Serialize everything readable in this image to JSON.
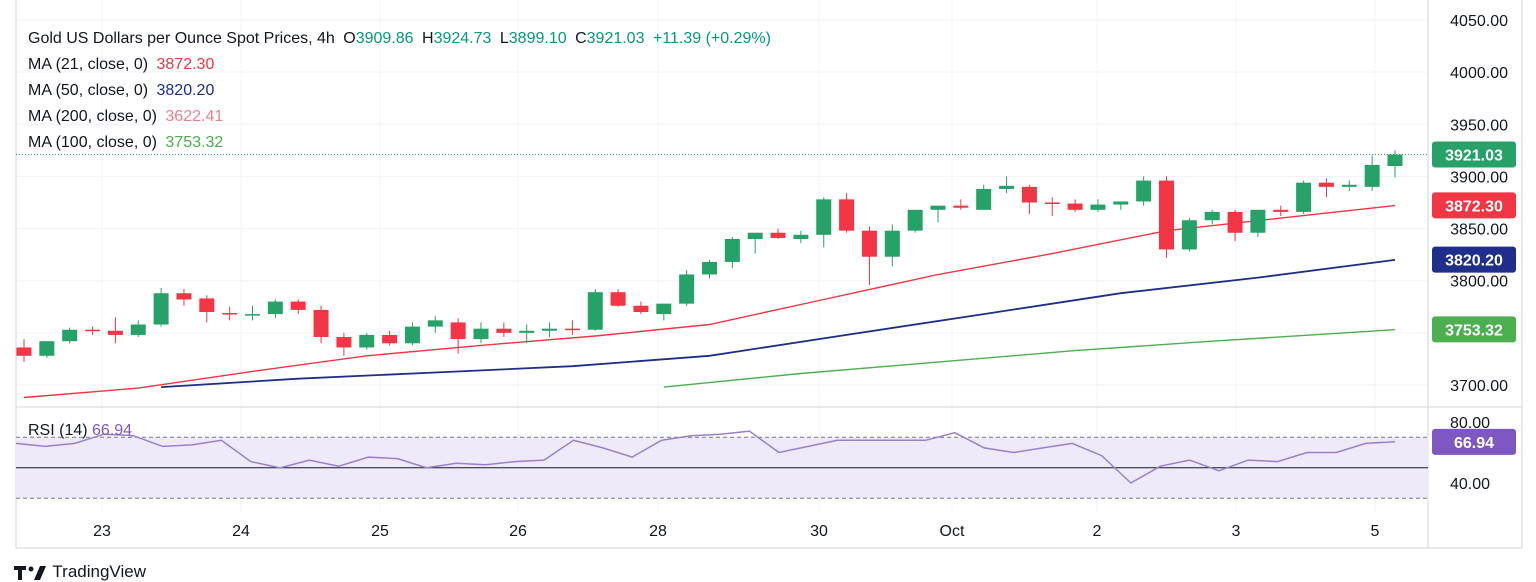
{
  "header": {
    "symbol": "Gold US Dollars per Ounce Spot Prices, 4h",
    "o_label": "O",
    "o_value": "3909.86",
    "h_label": "H",
    "h_value": "3924.73",
    "l_label": "L",
    "l_value": "3899.10",
    "c_label": "C",
    "c_value": "3921.03",
    "change": "+11.39 (+0.29%)",
    "ohlc_color": "#089981"
  },
  "ma_legends": [
    {
      "label": "MA (21, close, 0)",
      "value": "3872.30",
      "color": "#f23645"
    },
    {
      "label": "MA (50, close, 0)",
      "value": "3820.20",
      "color": "#1e2e8a"
    },
    {
      "label": "MA (200, close, 0)",
      "value": "3622.41",
      "color": "#ef7f91"
    },
    {
      "label": "MA (100, close, 0)",
      "value": "3753.32",
      "color": "#4caf50"
    }
  ],
  "rsi_legend": {
    "label": "RSI (14)",
    "value": "66.94",
    "color": "#7e57c2"
  },
  "branding": {
    "text": "TradingView"
  },
  "chart_data": {
    "type": "candlestick",
    "price_axis": {
      "min": 3700,
      "max": 4050,
      "ticks": [
        "4050.00",
        "4000.00",
        "3950.00",
        "3900.00",
        "3850.00",
        "3800.00",
        "3700.00"
      ]
    },
    "rsi_axis": {
      "ticks": [
        "80.00",
        "40.00"
      ],
      "upper_band": 70,
      "lower_band": 30
    },
    "x_labels": [
      "23",
      "24",
      "25",
      "26",
      "28",
      "30",
      "Oct",
      "2",
      "3",
      "5"
    ],
    "colors": {
      "up": "#26a269",
      "down": "#f23645",
      "ma21": "#f23645",
      "ma50": "#1e2e8a",
      "ma100": "#4caf50",
      "rsi": "#9a7fd1",
      "rsi_fill": "#efeafa"
    },
    "candles": [
      [
        3736,
        3744,
        3722,
        3728
      ],
      [
        3728,
        3742,
        3726,
        3742
      ],
      [
        3742,
        3755,
        3740,
        3753
      ],
      [
        3753,
        3756,
        3748,
        3752
      ],
      [
        3752,
        3765,
        3740,
        3748
      ],
      [
        3748,
        3762,
        3746,
        3758
      ],
      [
        3758,
        3793,
        3756,
        3788
      ],
      [
        3788,
        3792,
        3776,
        3782
      ],
      [
        3783,
        3786,
        3760,
        3770
      ],
      [
        3769,
        3775,
        3762,
        3768
      ],
      [
        3768,
        3776,
        3762,
        3768
      ],
      [
        3768,
        3782,
        3764,
        3780
      ],
      [
        3780,
        3782,
        3768,
        3772
      ],
      [
        3772,
        3776,
        3740,
        3746
      ],
      [
        3746,
        3750,
        3728,
        3736
      ],
      [
        3736,
        3750,
        3734,
        3748
      ],
      [
        3748,
        3752,
        3738,
        3740
      ],
      [
        3740,
        3760,
        3738,
        3756
      ],
      [
        3756,
        3766,
        3750,
        3762
      ],
      [
        3760,
        3764,
        3730,
        3744
      ],
      [
        3744,
        3760,
        3740,
        3754
      ],
      [
        3754,
        3760,
        3746,
        3750
      ],
      [
        3750,
        3758,
        3740,
        3752
      ],
      [
        3752,
        3760,
        3746,
        3754
      ],
      [
        3754,
        3762,
        3748,
        3753
      ],
      [
        3753,
        3792,
        3752,
        3789
      ],
      [
        3789,
        3792,
        3775,
        3776
      ],
      [
        3776,
        3780,
        3768,
        3770
      ],
      [
        3768,
        3778,
        3762,
        3778
      ],
      [
        3778,
        3810,
        3776,
        3806
      ],
      [
        3806,
        3820,
        3802,
        3818
      ],
      [
        3818,
        3842,
        3812,
        3840
      ],
      [
        3840,
        3846,
        3826,
        3846
      ],
      [
        3846,
        3850,
        3840,
        3841
      ],
      [
        3840,
        3848,
        3836,
        3844
      ],
      [
        3844,
        3880,
        3832,
        3878
      ],
      [
        3878,
        3884,
        3846,
        3848
      ],
      [
        3848,
        3852,
        3796,
        3823
      ],
      [
        3823,
        3854,
        3814,
        3848
      ],
      [
        3848,
        3868,
        3846,
        3868
      ],
      [
        3868,
        3872,
        3856,
        3872
      ],
      [
        3872,
        3878,
        3868,
        3870
      ],
      [
        3868,
        3892,
        3870,
        3888
      ],
      [
        3888,
        3900,
        3884,
        3891
      ],
      [
        3890,
        3892,
        3864,
        3875
      ],
      [
        3875,
        3880,
        3862,
        3874
      ],
      [
        3874,
        3878,
        3866,
        3868
      ],
      [
        3868,
        3878,
        3866,
        3873
      ],
      [
        3873,
        3876,
        3868,
        3876
      ],
      [
        3876,
        3900,
        3872,
        3896
      ],
      [
        3896,
        3900,
        3822,
        3830
      ],
      [
        3830,
        3860,
        3828,
        3858
      ],
      [
        3858,
        3868,
        3854,
        3866
      ],
      [
        3866,
        3868,
        3838,
        3846
      ],
      [
        3846,
        3868,
        3842,
        3868
      ],
      [
        3868,
        3872,
        3862,
        3866
      ],
      [
        3866,
        3896,
        3864,
        3894
      ],
      [
        3894,
        3898,
        3880,
        3890
      ],
      [
        3890,
        3896,
        3886,
        3892
      ],
      [
        3890,
        3920,
        3886,
        3911
      ],
      [
        3910,
        3925,
        3899,
        3921
      ]
    ],
    "ma21": [
      [
        0,
        3688
      ],
      [
        5,
        3697
      ],
      [
        10,
        3713
      ],
      [
        15,
        3728
      ],
      [
        20,
        3738
      ],
      [
        25,
        3747
      ],
      [
        30,
        3758
      ],
      [
        35,
        3782
      ],
      [
        40,
        3806
      ],
      [
        45,
        3826
      ],
      [
        50,
        3848
      ],
      [
        55,
        3860
      ],
      [
        60,
        3872
      ]
    ],
    "ma50": [
      [
        6,
        3698
      ],
      [
        12,
        3706
      ],
      [
        18,
        3712
      ],
      [
        24,
        3718
      ],
      [
        30,
        3728
      ],
      [
        36,
        3748
      ],
      [
        42,
        3768
      ],
      [
        48,
        3788
      ],
      [
        54,
        3803
      ],
      [
        60,
        3820
      ]
    ],
    "ma100": [
      [
        28,
        3698
      ],
      [
        34,
        3711
      ],
      [
        40,
        3722
      ],
      [
        46,
        3733
      ],
      [
        52,
        3742
      ],
      [
        60,
        3753
      ]
    ],
    "rsi": [
      66,
      64,
      66,
      72,
      71,
      64,
      65,
      68,
      54,
      50,
      55,
      51,
      57,
      56,
      50,
      53,
      52,
      54,
      55,
      68,
      63,
      57,
      68,
      71,
      72,
      74,
      60,
      64,
      68,
      68,
      68,
      68,
      73,
      63,
      60,
      63,
      66,
      58,
      40,
      51,
      55,
      48,
      55,
      54,
      60,
      60,
      66,
      67
    ],
    "last_price": "3921.03",
    "badges": [
      {
        "value": "3921.03",
        "color": "#26a269"
      },
      {
        "value": "3872.30",
        "color": "#f23645"
      },
      {
        "value": "3820.20",
        "color": "#1e2e8a"
      },
      {
        "value": "3753.32",
        "color": "#4caf50"
      },
      {
        "value": "66.94",
        "color": "#7e57c2"
      }
    ]
  }
}
